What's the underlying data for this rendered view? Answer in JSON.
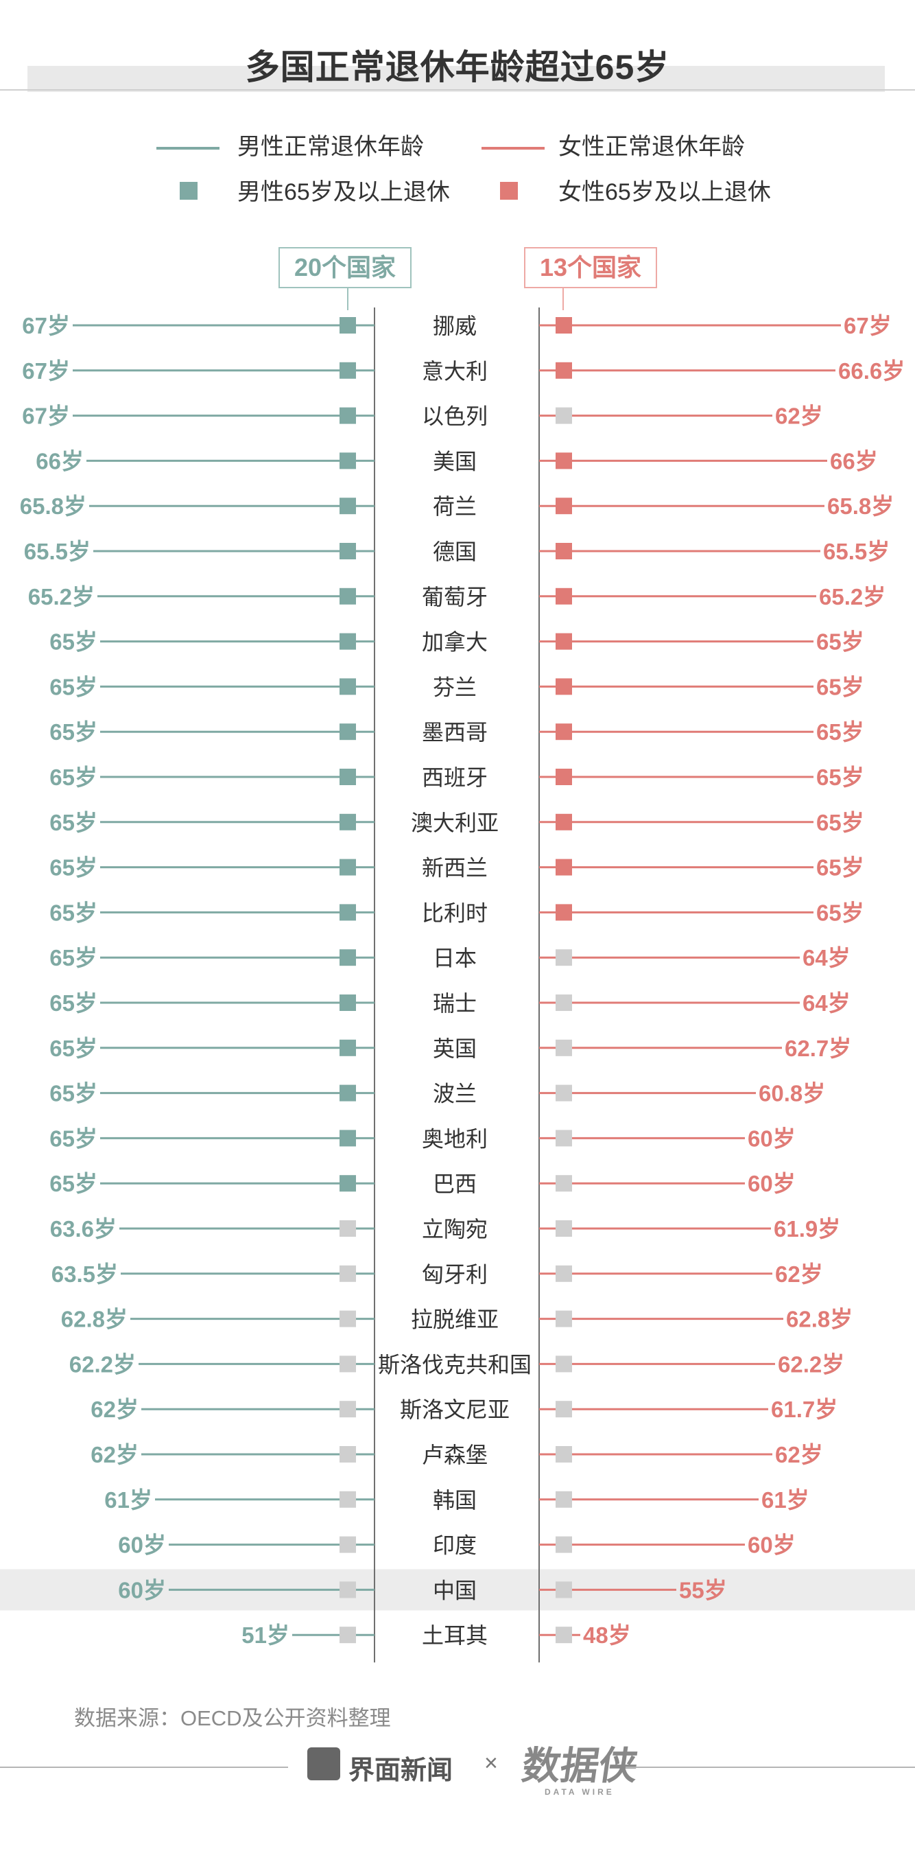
{
  "title": "多国正常退休年龄超过65岁",
  "legend": {
    "male_line": "男性正常退休年龄",
    "female_line": "女性正常退休年龄",
    "male_square": "男性65岁及以上退休",
    "female_square": "女性65岁及以上退休"
  },
  "counts": {
    "male": "20个国家",
    "female": "13个国家"
  },
  "colors": {
    "male": "#7fa9a3",
    "female": "#e07b76",
    "grey": "#cfcfcf",
    "highlight": "#ececec"
  },
  "highlight_country": "中国",
  "chart_data": {
    "type": "bar",
    "categories": [
      "挪威",
      "意大利",
      "以色列",
      "美国",
      "荷兰",
      "德国",
      "葡萄牙",
      "加拿大",
      "芬兰",
      "墨西哥",
      "西班牙",
      "澳大利亚",
      "新西兰",
      "比利时",
      "日本",
      "瑞士",
      "英国",
      "波兰",
      "奥地利",
      "巴西",
      "立陶宛",
      "匈牙利",
      "拉脱维亚",
      "斯洛伐克共和国",
      "斯洛文尼亚",
      "卢森堡",
      "韩国",
      "印度",
      "中国",
      "土耳其"
    ],
    "series": [
      {
        "name": "男性正常退休年龄",
        "values": [
          67,
          67,
          67,
          66,
          65.8,
          65.5,
          65.2,
          65,
          65,
          65,
          65,
          65,
          65,
          65,
          65,
          65,
          65,
          65,
          65,
          65,
          63.6,
          63.5,
          62.8,
          62.2,
          62,
          62,
          61,
          60,
          60,
          51
        ],
        "labels": [
          "67岁",
          "67岁",
          "67岁",
          "66岁",
          "65.8岁",
          "65.5岁",
          "65.2岁",
          "65岁",
          "65岁",
          "65岁",
          "65岁",
          "65岁",
          "65岁",
          "65岁",
          "65岁",
          "65岁",
          "65岁",
          "65岁",
          "65岁",
          "65岁",
          "63.6岁",
          "63.5岁",
          "62.8岁",
          "62.2岁",
          "62岁",
          "62岁",
          "61岁",
          "60岁",
          "60岁",
          "51岁"
        ]
      },
      {
        "name": "女性正常退休年龄",
        "values": [
          67,
          66.6,
          62,
          66,
          65.8,
          65.5,
          65.2,
          65,
          65,
          65,
          65,
          65,
          65,
          65,
          64,
          64,
          62.7,
          60.8,
          60,
          60,
          61.9,
          62,
          62.8,
          62.2,
          61.7,
          62,
          61,
          60,
          55,
          48
        ],
        "labels": [
          "67岁",
          "66.6岁",
          "62岁",
          "66岁",
          "65.8岁",
          "65.5岁",
          "65.2岁",
          "65岁",
          "65岁",
          "65岁",
          "65岁",
          "65岁",
          "65岁",
          "65岁",
          "64岁",
          "64岁",
          "62.7岁",
          "60.8岁",
          "60岁",
          "60岁",
          "61.9岁",
          "62岁",
          "62.8岁",
          "62.2岁",
          "61.7岁",
          "62岁",
          "61岁",
          "60岁",
          "55岁",
          "48岁"
        ]
      }
    ],
    "source": "数据来源：OECD及公开资料整理"
  },
  "footer": {
    "brand": "界面新闻",
    "times": "×",
    "partner": "数据侠",
    "partner_sub": "DATA WIRE"
  }
}
